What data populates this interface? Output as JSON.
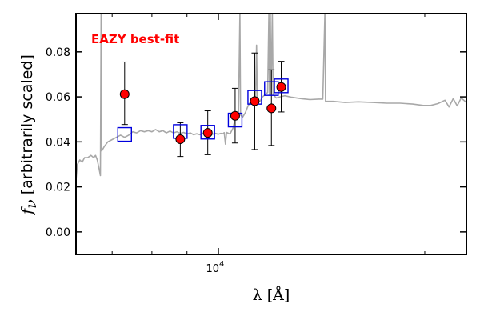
{
  "chart_data": {
    "type": "scatter",
    "annotation": "EAZY best-fit",
    "annotation_color": "#ff0000",
    "xlabel": "λ [Å]",
    "ylabel_math": "f",
    "ylabel_sub": "ν",
    "ylabel_text": "[arbitrarily scaled]",
    "xscale": "log",
    "xlim": [
      6200,
      23000
    ],
    "ylim": [
      -0.01,
      0.097
    ],
    "yticks": [
      {
        "value": 0.0,
        "label": "0.00"
      },
      {
        "value": 0.02,
        "label": "0.02"
      },
      {
        "value": 0.04,
        "label": "0.04"
      },
      {
        "value": 0.06,
        "label": "0.06"
      },
      {
        "value": 0.08,
        "label": "0.08"
      }
    ],
    "xticks_major": [
      {
        "value": 10000,
        "base": "10",
        "exp": "4"
      }
    ],
    "xticks_minor": [
      7000,
      8000,
      9000,
      20000
    ],
    "grid": false,
    "observed": {
      "marker": "circle",
      "color": "#ff0000",
      "points": [
        {
          "x": 7300,
          "y": 0.0612,
          "err_lo": 0.0135,
          "err_hi": 0.0143
        },
        {
          "x": 8800,
          "y": 0.0412,
          "err_lo": 0.0077,
          "err_hi": 0.0073
        },
        {
          "x": 9650,
          "y": 0.044,
          "err_lo": 0.0097,
          "err_hi": 0.0098
        },
        {
          "x": 10580,
          "y": 0.0516,
          "err_lo": 0.0121,
          "err_hi": 0.0122
        },
        {
          "x": 11300,
          "y": 0.0581,
          "err_lo": 0.0215,
          "err_hi": 0.0214
        },
        {
          "x": 11950,
          "y": 0.0549,
          "err_lo": 0.0165,
          "err_hi": 0.0171
        },
        {
          "x": 12350,
          "y": 0.0644,
          "err_lo": 0.0111,
          "err_hi": 0.0114
        }
      ]
    },
    "model_photometry": {
      "marker": "square",
      "color": "#0000dd",
      "points": [
        {
          "x": 7300,
          "y": 0.0433
        },
        {
          "x": 8800,
          "y": 0.0446
        },
        {
          "x": 9650,
          "y": 0.0443
        },
        {
          "x": 10580,
          "y": 0.0497
        },
        {
          "x": 11300,
          "y": 0.0598
        },
        {
          "x": 11950,
          "y": 0.0637
        },
        {
          "x": 12350,
          "y": 0.0649
        }
      ]
    },
    "template_spectrum": {
      "color": "#a8a8a8",
      "points": [
        [
          6200,
          0.023
        ],
        [
          6230,
          0.03
        ],
        [
          6280,
          0.032
        ],
        [
          6330,
          0.031
        ],
        [
          6380,
          0.033
        ],
        [
          6450,
          0.033
        ],
        [
          6520,
          0.034
        ],
        [
          6580,
          0.033
        ],
        [
          6620,
          0.034
        ],
        [
          6660,
          0.032
        ],
        [
          6700,
          0.028
        ],
        [
          6730,
          0.025
        ],
        [
          6745,
          0.097
        ],
        [
          6760,
          0.036
        ],
        [
          6820,
          0.038
        ],
        [
          6900,
          0.04
        ],
        [
          7000,
          0.041
        ],
        [
          7100,
          0.042
        ],
        [
          7200,
          0.043
        ],
        [
          7300,
          0.042
        ],
        [
          7400,
          0.043
        ],
        [
          7500,
          0.0445
        ],
        [
          7600,
          0.044
        ],
        [
          7700,
          0.045
        ],
        [
          7800,
          0.0445
        ],
        [
          7900,
          0.045
        ],
        [
          8000,
          0.0445
        ],
        [
          8100,
          0.0455
        ],
        [
          8200,
          0.0445
        ],
        [
          8300,
          0.045
        ],
        [
          8400,
          0.044
        ],
        [
          8500,
          0.0448
        ],
        [
          8600,
          0.044
        ],
        [
          8700,
          0.0445
        ],
        [
          8800,
          0.0438
        ],
        [
          8900,
          0.0442
        ],
        [
          9000,
          0.0435
        ],
        [
          9100,
          0.044
        ],
        [
          9200,
          0.0432
        ],
        [
          9300,
          0.0436
        ],
        [
          9400,
          0.0432
        ],
        [
          9500,
          0.0438
        ],
        [
          9600,
          0.0432
        ],
        [
          9700,
          0.0436
        ],
        [
          9800,
          0.0434
        ],
        [
          9900,
          0.0438
        ],
        [
          10000,
          0.0434
        ],
        [
          10080,
          0.0438
        ],
        [
          10150,
          0.0436
        ],
        [
          10200,
          0.0441
        ],
        [
          10240,
          0.039
        ],
        [
          10280,
          0.0442
        ],
        [
          10400,
          0.0435
        ],
        [
          10500,
          0.046
        ],
        [
          10580,
          0.05
        ],
        [
          10650,
          0.051
        ],
        [
          10700,
          0.052
        ],
        [
          10750,
          0.097
        ],
        [
          10775,
          0.052
        ],
        [
          10850,
          0.051
        ],
        [
          10950,
          0.053
        ],
        [
          11050,
          0.056
        ],
        [
          11150,
          0.058
        ],
        [
          11250,
          0.059
        ],
        [
          11330,
          0.058
        ],
        [
          11370,
          0.083
        ],
        [
          11400,
          0.058
        ],
        [
          11500,
          0.058
        ],
        [
          11600,
          0.06
        ],
        [
          11700,
          0.061
        ],
        [
          11800,
          0.062
        ],
        [
          11850,
          0.097
        ],
        [
          11875,
          0.061
        ],
        [
          11905,
          0.097
        ],
        [
          11935,
          0.061
        ],
        [
          11985,
          0.097
        ],
        [
          12020,
          0.061
        ],
        [
          12150,
          0.0595
        ],
        [
          12300,
          0.06
        ],
        [
          12500,
          0.0605
        ],
        [
          12800,
          0.0598
        ],
        [
          13200,
          0.0592
        ],
        [
          13600,
          0.0588
        ],
        [
          14000,
          0.059
        ],
        [
          14200,
          0.059
        ],
        [
          14300,
          0.097
        ],
        [
          14330,
          0.058
        ],
        [
          14700,
          0.058
        ],
        [
          15300,
          0.0575
        ],
        [
          16000,
          0.0578
        ],
        [
          16800,
          0.0575
        ],
        [
          17600,
          0.0572
        ],
        [
          18400,
          0.0572
        ],
        [
          19200,
          0.0568
        ],
        [
          19900,
          0.0562
        ],
        [
          20400,
          0.0562
        ],
        [
          20900,
          0.057
        ],
        [
          21400,
          0.0585
        ],
        [
          21700,
          0.0555
        ],
        [
          22000,
          0.0592
        ],
        [
          22300,
          0.056
        ],
        [
          22600,
          0.0595
        ],
        [
          23000,
          0.0575
        ]
      ]
    }
  }
}
